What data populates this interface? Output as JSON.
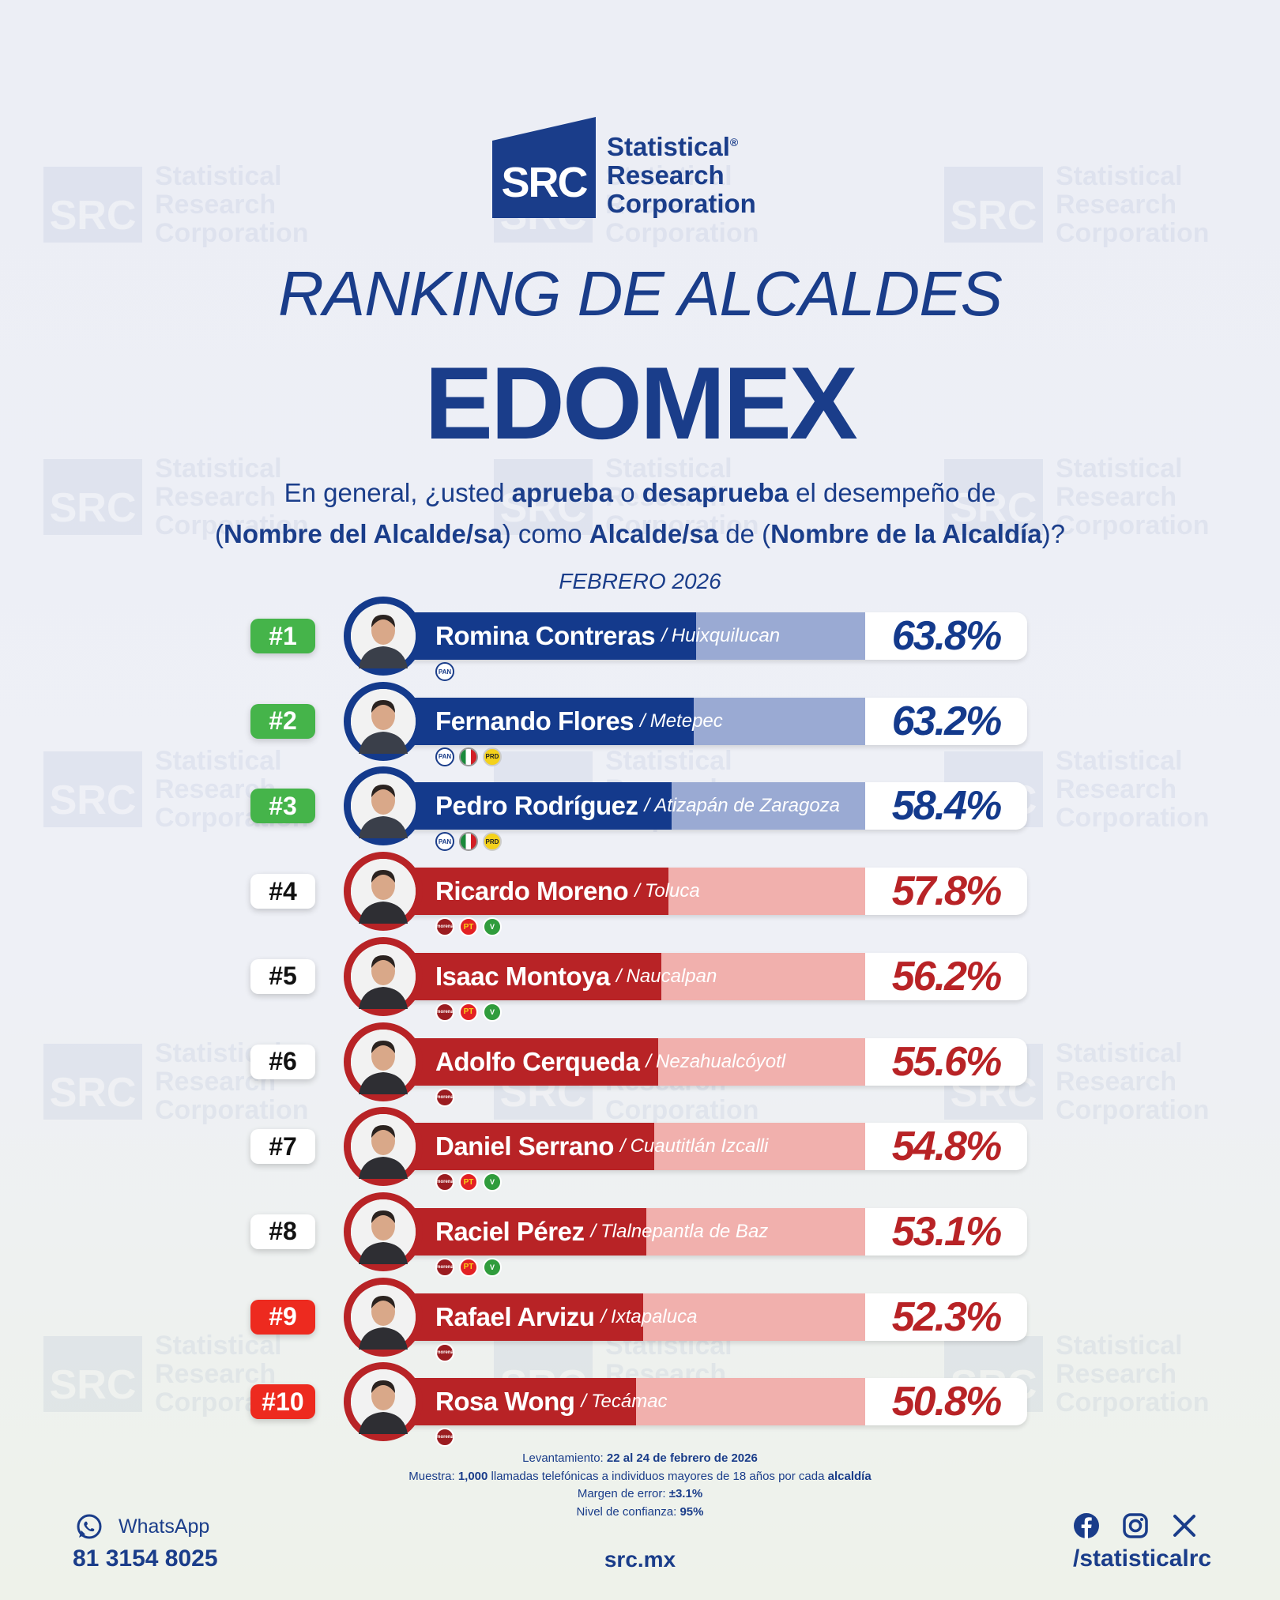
{
  "brand": {
    "logo_mark": "SRC",
    "name_lines": [
      "Statistical",
      "Research",
      "Corporation"
    ],
    "registered": "®"
  },
  "header": {
    "title": "RANKING DE ALCALDES",
    "subtitle": "EDOMEX",
    "question": {
      "p1": "En general, ¿usted ",
      "b1": "aprueba",
      "p2": " o ",
      "b2": "desaprueba",
      "p3": " el desempeño de",
      "p4": "(",
      "b3": "Nombre del Alcalde/sa",
      "p5": ") como ",
      "b4": "Alcalde/sa",
      "p6": " de (",
      "b5": "Nombre de la Alcaldía",
      "p7": ")?"
    },
    "date": "FEBRERO 2026"
  },
  "chart_data": {
    "type": "bar",
    "title": "RANKING DE ALCALDES",
    "subtitle": "EDOMEX",
    "unit": "%",
    "rows": [
      {
        "rank": "#1",
        "name": "Romina Contreras",
        "municipality": "Huixquilucan",
        "value": 63.8,
        "label": "63.8%",
        "color": "blue",
        "rank_color": "green",
        "parties": [
          "PAN"
        ]
      },
      {
        "rank": "#2",
        "name": "Fernando Flores",
        "municipality": "Metepec",
        "value": 63.2,
        "label": "63.2%",
        "color": "blue",
        "rank_color": "green",
        "parties": [
          "PAN",
          "PRI",
          "PRD"
        ]
      },
      {
        "rank": "#3",
        "name": "Pedro Rodríguez",
        "municipality": "Atizapán de Zaragoza",
        "value": 58.4,
        "label": "58.4%",
        "color": "blue",
        "rank_color": "green",
        "parties": [
          "PAN",
          "PRI",
          "PRD"
        ]
      },
      {
        "rank": "#4",
        "name": "Ricardo Moreno",
        "municipality": "Toluca",
        "value": 57.8,
        "label": "57.8%",
        "color": "red",
        "rank_color": "white",
        "parties": [
          "MORENA",
          "PT",
          "VERDE"
        ]
      },
      {
        "rank": "#5",
        "name": "Isaac Montoya",
        "municipality": "Naucalpan",
        "value": 56.2,
        "label": "56.2%",
        "color": "red",
        "rank_color": "white",
        "parties": [
          "MORENA",
          "PT",
          "VERDE"
        ]
      },
      {
        "rank": "#6",
        "name": "Adolfo Cerqueda",
        "municipality": "Nezahualcóyotl",
        "value": 55.6,
        "label": "55.6%",
        "color": "red",
        "rank_color": "white",
        "parties": [
          "MORENA"
        ]
      },
      {
        "rank": "#7",
        "name": "Daniel Serrano",
        "municipality": "Cuautitlán Izcalli",
        "value": 54.8,
        "label": "54.8%",
        "color": "red",
        "rank_color": "white",
        "parties": [
          "MORENA",
          "PT",
          "VERDE"
        ]
      },
      {
        "rank": "#8",
        "name": "Raciel Pérez",
        "municipality": "Tlalnepantla de Baz",
        "value": 53.1,
        "label": "53.1%",
        "color": "red",
        "rank_color": "white",
        "parties": [
          "MORENA",
          "PT",
          "VERDE"
        ]
      },
      {
        "rank": "#9",
        "name": "Rafael Arvizu",
        "municipality": "Ixtapaluca",
        "value": 52.3,
        "label": "52.3%",
        "color": "red",
        "rank_color": "red",
        "parties": [
          "MORENA"
        ]
      },
      {
        "rank": "#10",
        "name": "Rosa Wong",
        "municipality": "Tecámac",
        "value": 50.8,
        "label": "50.8%",
        "color": "red",
        "rank_color": "red",
        "parties": [
          "MORENA"
        ]
      }
    ],
    "colors": {
      "blue": "#143a8c",
      "red": "#b82326",
      "green": "#45b44a"
    }
  },
  "footnotes": {
    "l1a": "Levantamiento: ",
    "l1b": "22 al 24 de febrero de 2026",
    "l2a": "Muestra: ",
    "l2b": "1,000",
    "l2c": " llamadas telefónicas a individuos mayores de 18 años por cada ",
    "l2d": "alcaldía",
    "l3a": "Margen de error: ",
    "l3b": "±3.1%",
    "l4a": "Nivel de confianza: ",
    "l4b": "95%"
  },
  "footer": {
    "whatsapp_label": "WhatsApp",
    "phone": "81 3154 8025",
    "site": "src.mx",
    "social_handle": "/statisticalrc",
    "social_icons": [
      "facebook-icon",
      "instagram-icon",
      "x-icon"
    ],
    "x_glyph": "X"
  }
}
